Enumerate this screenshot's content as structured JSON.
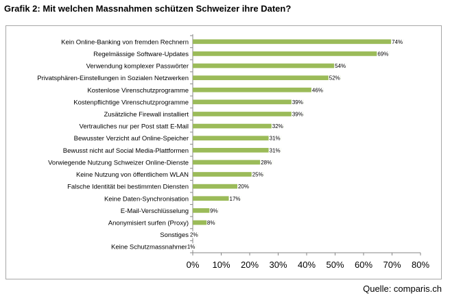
{
  "title": "Grafik 2: Mit welchen Massnahmen schützen Schweizer ihre Daten?",
  "source": "Quelle: comparis.ch",
  "colors": {
    "bar": "#9bbb59",
    "axis": "#868686",
    "label_bg": "#ffffff"
  },
  "chart_data": {
    "type": "bar",
    "orientation": "horizontal",
    "categories": [
      "Kein Online-Banking von fremden Rechnern",
      "Regelmässige Software-Updates",
      "Verwendung komplexer Passwörter",
      "Privatsphären-Einstellungen in Sozialen Netzwerken",
      "Kostenlose Virenschutzprogramme",
      "Kostenpflichtige Virenschutzprogramme",
      "Zusätzliche Firewall installiert",
      "Vertrauliches nur per Post statt  E-Mail",
      "Bewusster Verzicht auf Online-Speicher",
      "Bewusst nicht auf Social Media-Plattformen",
      "Vorwiegende Nutzung Schweizer Online-Dienste",
      "Keine Nutzung von öffentlichem WLAN",
      "Falsche Identität bei bestimmten Diensten",
      "Keine Daten-Synchronisation",
      "E-Mail-Verschlüsselung",
      "Anonymisiert surfen (Proxy)",
      "Sonstiges",
      "Keine Schutzmassnahmen"
    ],
    "values": [
      74,
      69,
      54,
      52,
      46,
      39,
      39,
      32,
      31,
      31,
      28,
      25,
      20,
      17,
      9,
      8,
      2,
      1
    ],
    "data_labels": [
      "74%",
      "69%",
      "54%",
      "52%",
      "46%",
      "39%",
      "39%",
      "32%",
      "31%",
      "31%",
      "28%",
      "25%",
      "20%",
      "17%",
      "9%",
      "8%",
      "2%",
      "1%"
    ],
    "xlim": [
      0,
      80
    ],
    "xticks": [
      "0%",
      "10%",
      "20%",
      "30%",
      "40%",
      "50%",
      "60%",
      "70%",
      "80%"
    ],
    "xlabel": "",
    "ylabel": "",
    "grid": false,
    "legend": "none"
  }
}
